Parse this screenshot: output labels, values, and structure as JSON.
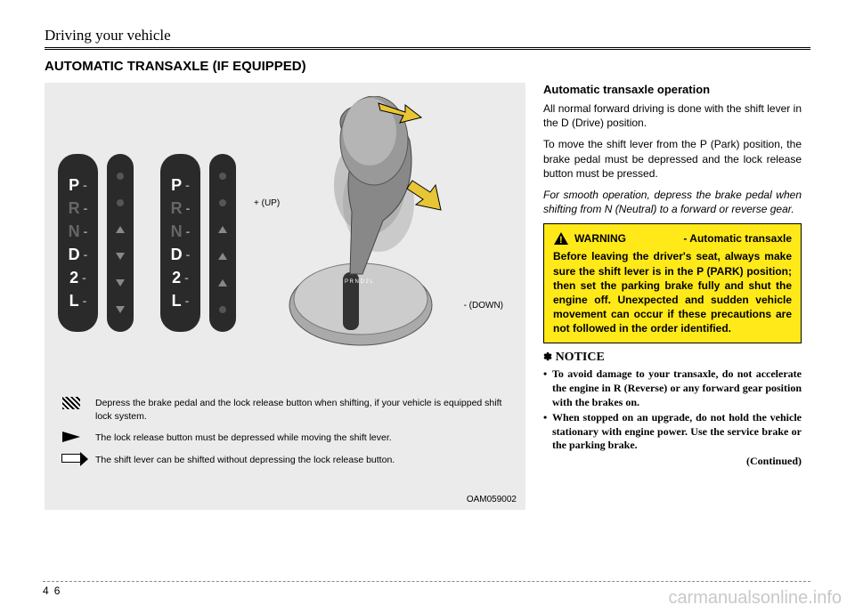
{
  "header": {
    "chapter_title": "Driving your vehicle"
  },
  "section": {
    "title": "AUTOMATIC TRANSAXLE (IF EQUIPPED)"
  },
  "figure": {
    "gears": [
      "P",
      "R",
      "N",
      "D",
      "2",
      "L"
    ],
    "dim_positions": [
      "R",
      "N"
    ],
    "up_label": "+ (UP)",
    "down_label": "- (DOWN)",
    "legend": [
      {
        "icon": "hatch",
        "text": "Depress the brake pedal and the lock release button when shifting, if your vehicle is equipped shift lock system."
      },
      {
        "icon": "solid",
        "text": "The lock release button must be depressed while moving the shift lever."
      },
      {
        "icon": "outline",
        "text": "The shift lever can be shifted without depressing the lock release button."
      }
    ],
    "code": "OAM059002",
    "colors": {
      "panel": "#2a2a2a",
      "bg": "#ebebeb",
      "arrow_gold": "#e8c534"
    }
  },
  "body": {
    "subheading": "Automatic transaxle operation",
    "para1": "All normal forward driving is done with the shift lever in the D (Drive) position.",
    "para2": "To move the shift lever from the P (Park) position, the brake pedal must be depressed and the lock release button must be pressed.",
    "para3": "For smooth operation, depress the brake pedal when shifting from N (Neutral) to a forward or reverse gear."
  },
  "warning": {
    "label": "WARNING",
    "sub": "- Automatic transaxle",
    "body": "Before leaving the driver's seat, always make sure the shift lever is in the P (PARK) position; then set the parking brake fully and shut the engine off. Unexpected and sudden vehicle movement can occur if these precautions are not followed in the order identified.",
    "bg": "#ffe919"
  },
  "notice": {
    "symbol": "✽",
    "label": "NOTICE",
    "items": [
      "To avoid damage to your transaxle, do not accelerate the engine in R (Reverse) or any forward gear position with the brakes on.",
      "When stopped on an upgrade, do not hold the vehicle stationary with engine power.  Use the service brake or the parking brake."
    ],
    "continued": "(Continued)"
  },
  "footer": {
    "page_section": "4",
    "page_num": "6"
  },
  "watermark": "carmanualsonline.info"
}
